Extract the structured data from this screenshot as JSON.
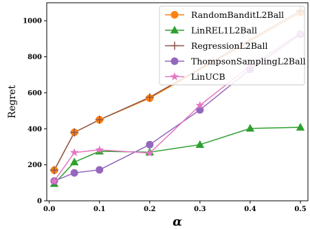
{
  "chart_data": {
    "type": "line",
    "xlabel": "α",
    "ylabel": "Regret",
    "xlim": [
      -0.005,
      0.515
    ],
    "ylim": [
      0,
      1100
    ],
    "x_ticks": [
      "0.0",
      "0.1",
      "0.2",
      "0.3",
      "0.4",
      "0.5"
    ],
    "y_ticks": [
      "0",
      "200",
      "400",
      "600",
      "800",
      "1000"
    ],
    "grid": false,
    "legend_position": "top-right",
    "series": [
      {
        "name": "RandomBanditL2Ball",
        "color": "#ff7f0e",
        "marker": "circle",
        "points": [
          [
            0.01,
            170
          ],
          [
            0.05,
            380
          ],
          [
            0.1,
            450
          ],
          [
            0.2,
            570
          ],
          [
            0.5,
            1045
          ]
        ]
      },
      {
        "name": "LinREL1L2Ball",
        "color": "#2ca02c",
        "marker": "triangle",
        "points": [
          [
            0.01,
            95
          ],
          [
            0.05,
            215
          ],
          [
            0.1,
            275
          ],
          [
            0.2,
            270
          ],
          [
            0.3,
            312
          ],
          [
            0.4,
            402
          ],
          [
            0.5,
            408
          ]
        ]
      },
      {
        "name": "RegressionL2Ball",
        "color": "#8c564b",
        "marker": "plus",
        "points": [
          [
            0.01,
            170
          ],
          [
            0.05,
            380
          ],
          [
            0.1,
            450
          ],
          [
            0.2,
            575
          ],
          [
            0.5,
            1055
          ]
        ]
      },
      {
        "name": "ThompsonSamplingL2Ball",
        "color": "#9467bd",
        "marker": "circle",
        "points": [
          [
            0.01,
            110
          ],
          [
            0.05,
            155
          ],
          [
            0.1,
            172
          ],
          [
            0.2,
            312
          ],
          [
            0.3,
            505
          ],
          [
            0.4,
            730
          ],
          [
            0.5,
            925
          ]
        ]
      },
      {
        "name": "LinUCB",
        "color": "#e377c2",
        "marker": "star",
        "points": [
          [
            0.01,
            110
          ],
          [
            0.05,
            268
          ],
          [
            0.1,
            283
          ],
          [
            0.2,
            265
          ],
          [
            0.3,
            530
          ],
          [
            0.4,
            750
          ],
          [
            0.5,
            930
          ]
        ]
      }
    ]
  }
}
